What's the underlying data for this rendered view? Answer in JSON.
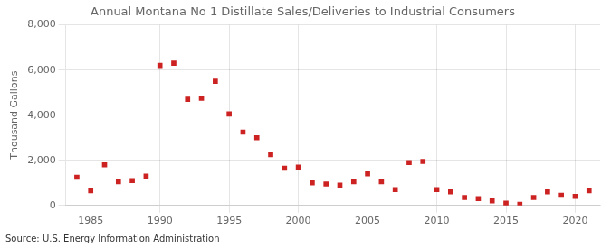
{
  "chart_data": {
    "type": "scatter",
    "title": "Annual Montana No 1 Distillate Sales/Deliveries to Industrial Consumers",
    "y_label": "Thousand Gallons",
    "annotations": [
      "Source: U.S. Energy Information Administration"
    ],
    "x": [
      1984,
      1985,
      1986,
      1987,
      1988,
      1989,
      1990,
      1991,
      1992,
      1993,
      1994,
      1995,
      1996,
      1997,
      1998,
      1999,
      2000,
      2001,
      2002,
      2003,
      2004,
      2005,
      2006,
      2007,
      2008,
      2009,
      2010,
      2011,
      2012,
      2013,
      2014,
      2015,
      2016,
      2017,
      2018,
      2019,
      2020,
      2021
    ],
    "values": [
      1250,
      650,
      1800,
      1050,
      1100,
      1300,
      6200,
      6300,
      4700,
      4750,
      5500,
      4050,
      3250,
      3000,
      2250,
      1650,
      1700,
      1000,
      950,
      900,
      1050,
      1400,
      1050,
      700,
      1900,
      1950,
      700,
      600,
      350,
      300,
      200,
      100,
      50,
      350,
      600,
      450,
      400,
      650
    ],
    "color": "#cc2222",
    "marker": "square",
    "xlim": [
      1983.2,
      2021.8
    ],
    "xticks": [
      1985,
      1990,
      1995,
      2000,
      2005,
      2010,
      2015,
      2020
    ],
    "ylim": [
      0,
      8000
    ],
    "yticks": [
      0,
      {
        "value": 2000,
        "label": "2,000"
      },
      {
        "value": 4000,
        "label": "4,000"
      },
      {
        "value": 6000,
        "label": "6,000"
      },
      {
        "value": 8000,
        "label": "8,000"
      }
    ],
    "grid": true
  }
}
